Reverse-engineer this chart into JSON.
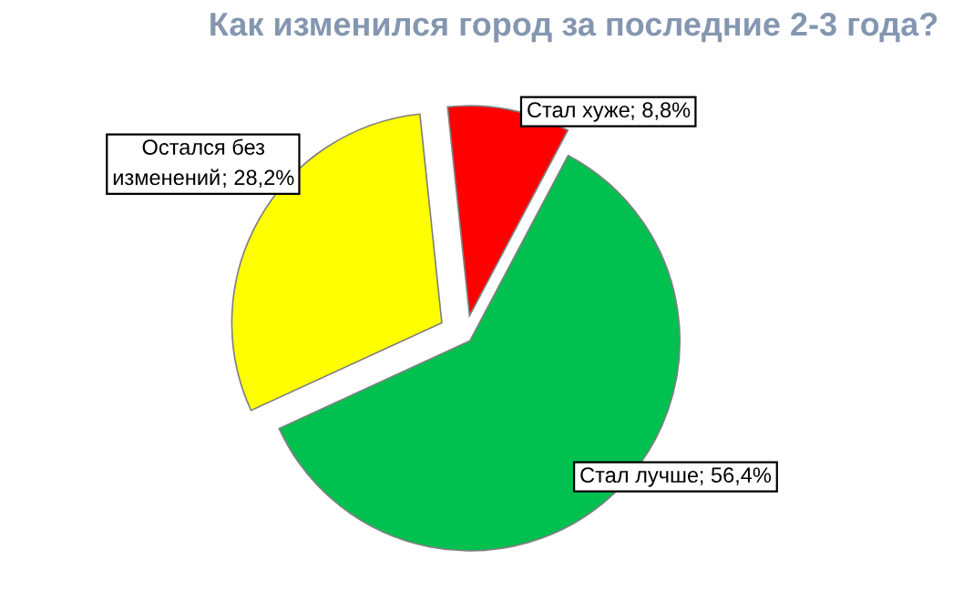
{
  "chart_data": {
    "type": "pie",
    "title": "Как изменился город за последние 2-3 года?",
    "categories": [
      "Стал хуже",
      "Стал лучше",
      "Остался без изменений"
    ],
    "values": [
      8.8,
      56.4,
      28.2
    ],
    "colors": [
      "#ff0000",
      "#00c050",
      "#ffff00"
    ],
    "value_labels": [
      "; 8,8%",
      "; 56,4%",
      "; 28,2%"
    ],
    "legend": false
  }
}
